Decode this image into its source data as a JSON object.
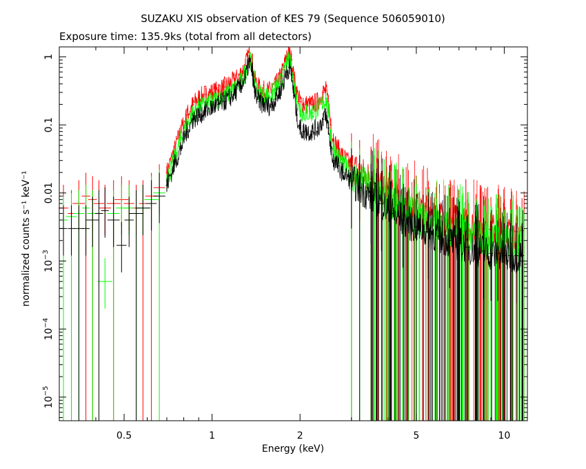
{
  "chart_data": {
    "type": "line",
    "title": "SUZAKU XIS observation of KES 79 (Sequence 506059010)",
    "subtitle": "Exposure time: 135.9ks (total from all detectors)",
    "xlabel": "Energy (keV)",
    "ylabel": "normalized counts s⁻¹ keV⁻¹",
    "xscale": "log",
    "yscale": "log",
    "xlim": [
      0.3,
      12.0
    ],
    "ylim": [
      4.5e-06,
      1.4
    ],
    "x_ticks": [
      {
        "value": 0.5,
        "label": "0.5"
      },
      {
        "value": 1,
        "label": "1"
      },
      {
        "value": 2,
        "label": "2"
      },
      {
        "value": 5,
        "label": "5"
      },
      {
        "value": 10,
        "label": "10"
      }
    ],
    "y_ticks": [
      {
        "value": 1e-05,
        "base": "10",
        "exp": "−5"
      },
      {
        "value": 0.0001,
        "base": "10",
        "exp": "−4"
      },
      {
        "value": 0.001,
        "base": "10",
        "exp": "−3"
      },
      {
        "value": 0.01,
        "label": "0.01"
      },
      {
        "value": 0.1,
        "label": "0.1"
      },
      {
        "value": 1,
        "label": "1"
      }
    ],
    "series": [
      {
        "color": "#ff0000",
        "x": [
          0.31,
          0.33,
          0.35,
          0.37,
          0.39,
          0.41,
          0.43,
          0.46,
          0.49,
          0.52,
          0.55,
          0.58,
          0.62,
          0.66,
          0.7,
          0.74,
          0.78,
          0.82,
          0.86,
          0.9,
          0.95,
          1.0,
          1.05,
          1.1,
          1.15,
          1.2,
          1.25,
          1.3,
          1.34,
          1.37,
          1.4,
          1.45,
          1.5,
          1.55,
          1.6,
          1.65,
          1.7,
          1.75,
          1.8,
          1.84,
          1.87,
          1.9,
          1.95,
          2.0,
          2.05,
          2.1,
          2.2,
          2.3,
          2.4,
          2.45,
          2.5,
          2.55,
          2.6,
          2.7,
          2.8,
          3.0,
          3.2,
          3.5,
          3.8,
          4.1,
          4.5,
          5.0,
          5.5,
          6.0,
          6.5,
          7.0,
          7.5,
          8.0,
          8.5,
          9.0,
          9.5,
          10.0,
          10.5,
          11.0,
          11.5
        ],
        "y": [
          0.006,
          0.005,
          0.007,
          0.009,
          0.008,
          0.007,
          0.006,
          0.007,
          0.008,
          0.007,
          0.006,
          0.007,
          0.009,
          0.012,
          0.02,
          0.04,
          0.08,
          0.14,
          0.2,
          0.25,
          0.28,
          0.3,
          0.32,
          0.36,
          0.4,
          0.45,
          0.55,
          0.75,
          1.15,
          0.9,
          0.45,
          0.35,
          0.32,
          0.31,
          0.33,
          0.38,
          0.48,
          0.65,
          1.0,
          1.1,
          0.9,
          0.55,
          0.3,
          0.22,
          0.2,
          0.2,
          0.2,
          0.22,
          0.3,
          0.32,
          0.22,
          0.1,
          0.06,
          0.045,
          0.035,
          0.025,
          0.02,
          0.016,
          0.012,
          0.009,
          0.0075,
          0.006,
          0.005,
          0.0045,
          0.004,
          0.0037,
          0.0034,
          0.0032,
          0.003,
          0.0029,
          0.0028,
          0.0027,
          0.0027,
          0.0027,
          0.0028
        ]
      },
      {
        "color": "#00ff00",
        "x": [
          0.31,
          0.33,
          0.35,
          0.37,
          0.39,
          0.41,
          0.43,
          0.46,
          0.49,
          0.52,
          0.55,
          0.58,
          0.62,
          0.66,
          0.7,
          0.74,
          0.78,
          0.82,
          0.86,
          0.9,
          0.95,
          1.0,
          1.05,
          1.1,
          1.15,
          1.2,
          1.25,
          1.3,
          1.34,
          1.37,
          1.4,
          1.45,
          1.5,
          1.55,
          1.6,
          1.65,
          1.7,
          1.75,
          1.8,
          1.84,
          1.87,
          1.9,
          1.95,
          2.0,
          2.05,
          2.1,
          2.2,
          2.3,
          2.4,
          2.45,
          2.5,
          2.55,
          2.6,
          2.7,
          2.8,
          3.0,
          3.2,
          3.5,
          3.8,
          4.1,
          4.5,
          5.0,
          5.5,
          6.0,
          6.5,
          7.0,
          7.5,
          8.0,
          8.5,
          9.0,
          9.5,
          10.0,
          10.5,
          11.0,
          11.5
        ],
        "y": [
          0.004,
          0.0045,
          0.005,
          0.006,
          0.005,
          0.005,
          0.0005,
          0.005,
          0.006,
          0.006,
          0.005,
          0.006,
          0.008,
          0.01,
          0.015,
          0.03,
          0.06,
          0.1,
          0.15,
          0.18,
          0.2,
          0.22,
          0.24,
          0.26,
          0.3,
          0.35,
          0.42,
          0.6,
          0.95,
          0.75,
          0.38,
          0.3,
          0.28,
          0.27,
          0.29,
          0.33,
          0.4,
          0.52,
          0.8,
          0.88,
          0.7,
          0.42,
          0.22,
          0.16,
          0.15,
          0.15,
          0.15,
          0.17,
          0.22,
          0.24,
          0.16,
          0.07,
          0.045,
          0.035,
          0.027,
          0.019,
          0.015,
          0.012,
          0.009,
          0.007,
          0.0055,
          0.0045,
          0.0038,
          0.0033,
          0.003,
          0.0028,
          0.0026,
          0.0024,
          0.0022,
          0.0021,
          0.002,
          0.0019,
          0.0019,
          0.0019,
          0.002
        ]
      },
      {
        "color": "#000000",
        "x": [
          0.31,
          0.33,
          0.35,
          0.37,
          0.39,
          0.41,
          0.43,
          0.46,
          0.49,
          0.52,
          0.55,
          0.58,
          0.62,
          0.66,
          0.7,
          0.74,
          0.78,
          0.82,
          0.86,
          0.9,
          0.95,
          1.0,
          1.05,
          1.1,
          1.15,
          1.2,
          1.25,
          1.3,
          1.34,
          1.37,
          1.4,
          1.45,
          1.5,
          1.55,
          1.6,
          1.65,
          1.7,
          1.75,
          1.8,
          1.84,
          1.87,
          1.9,
          1.95,
          2.0,
          2.05,
          2.1,
          2.2,
          2.3,
          2.4,
          2.45,
          2.5,
          2.55,
          2.6,
          2.7,
          2.8,
          3.0,
          3.2,
          3.5,
          3.8,
          4.1,
          4.5,
          5.0,
          5.5,
          6.0,
          6.5,
          7.0,
          7.5,
          8.0,
          8.5,
          9.0,
          9.5,
          10.0,
          10.5,
          11.0,
          11.5
        ],
        "y": [
          0.003,
          0.003,
          0.003,
          0.003,
          0.004,
          0.005,
          0.0055,
          0.004,
          0.0017,
          0.004,
          0.005,
          0.006,
          0.007,
          0.009,
          0.013,
          0.025,
          0.045,
          0.08,
          0.12,
          0.14,
          0.16,
          0.18,
          0.2,
          0.22,
          0.25,
          0.3,
          0.37,
          0.5,
          0.85,
          0.65,
          0.3,
          0.22,
          0.2,
          0.19,
          0.2,
          0.24,
          0.3,
          0.4,
          0.6,
          0.7,
          0.55,
          0.3,
          0.14,
          0.09,
          0.08,
          0.08,
          0.08,
          0.09,
          0.12,
          0.14,
          0.09,
          0.045,
          0.03,
          0.025,
          0.02,
          0.015,
          0.012,
          0.009,
          0.007,
          0.005,
          0.004,
          0.0032,
          0.0027,
          0.0023,
          0.002,
          0.0018,
          0.0016,
          0.0015,
          0.0014,
          0.0013,
          0.0013,
          0.0012,
          0.0012,
          0.0012,
          0.0012
        ]
      }
    ]
  }
}
